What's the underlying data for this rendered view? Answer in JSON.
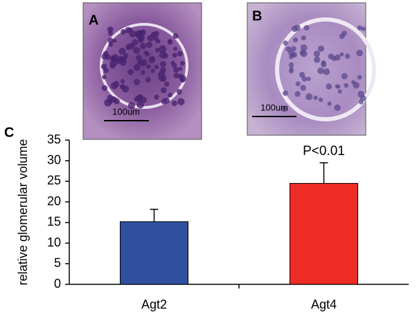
{
  "panels": [
    {
      "label": "A",
      "scale": "100um"
    },
    {
      "label": "B",
      "scale": "100um"
    }
  ],
  "chart_data": {
    "type": "bar",
    "panel_label": "C",
    "ylabel": "relative glomerular volume",
    "categories": [
      "Agt2",
      "Agt4"
    ],
    "values": [
      15.2,
      24.5
    ],
    "errors": [
      3,
      5
    ],
    "colors": [
      "#2f4f9f",
      "#ec2c25"
    ],
    "annotation": "P<0.01",
    "ylim": [
      0,
      35
    ],
    "yticks": [
      0,
      5,
      10,
      15,
      20,
      25,
      30,
      35
    ]
  }
}
